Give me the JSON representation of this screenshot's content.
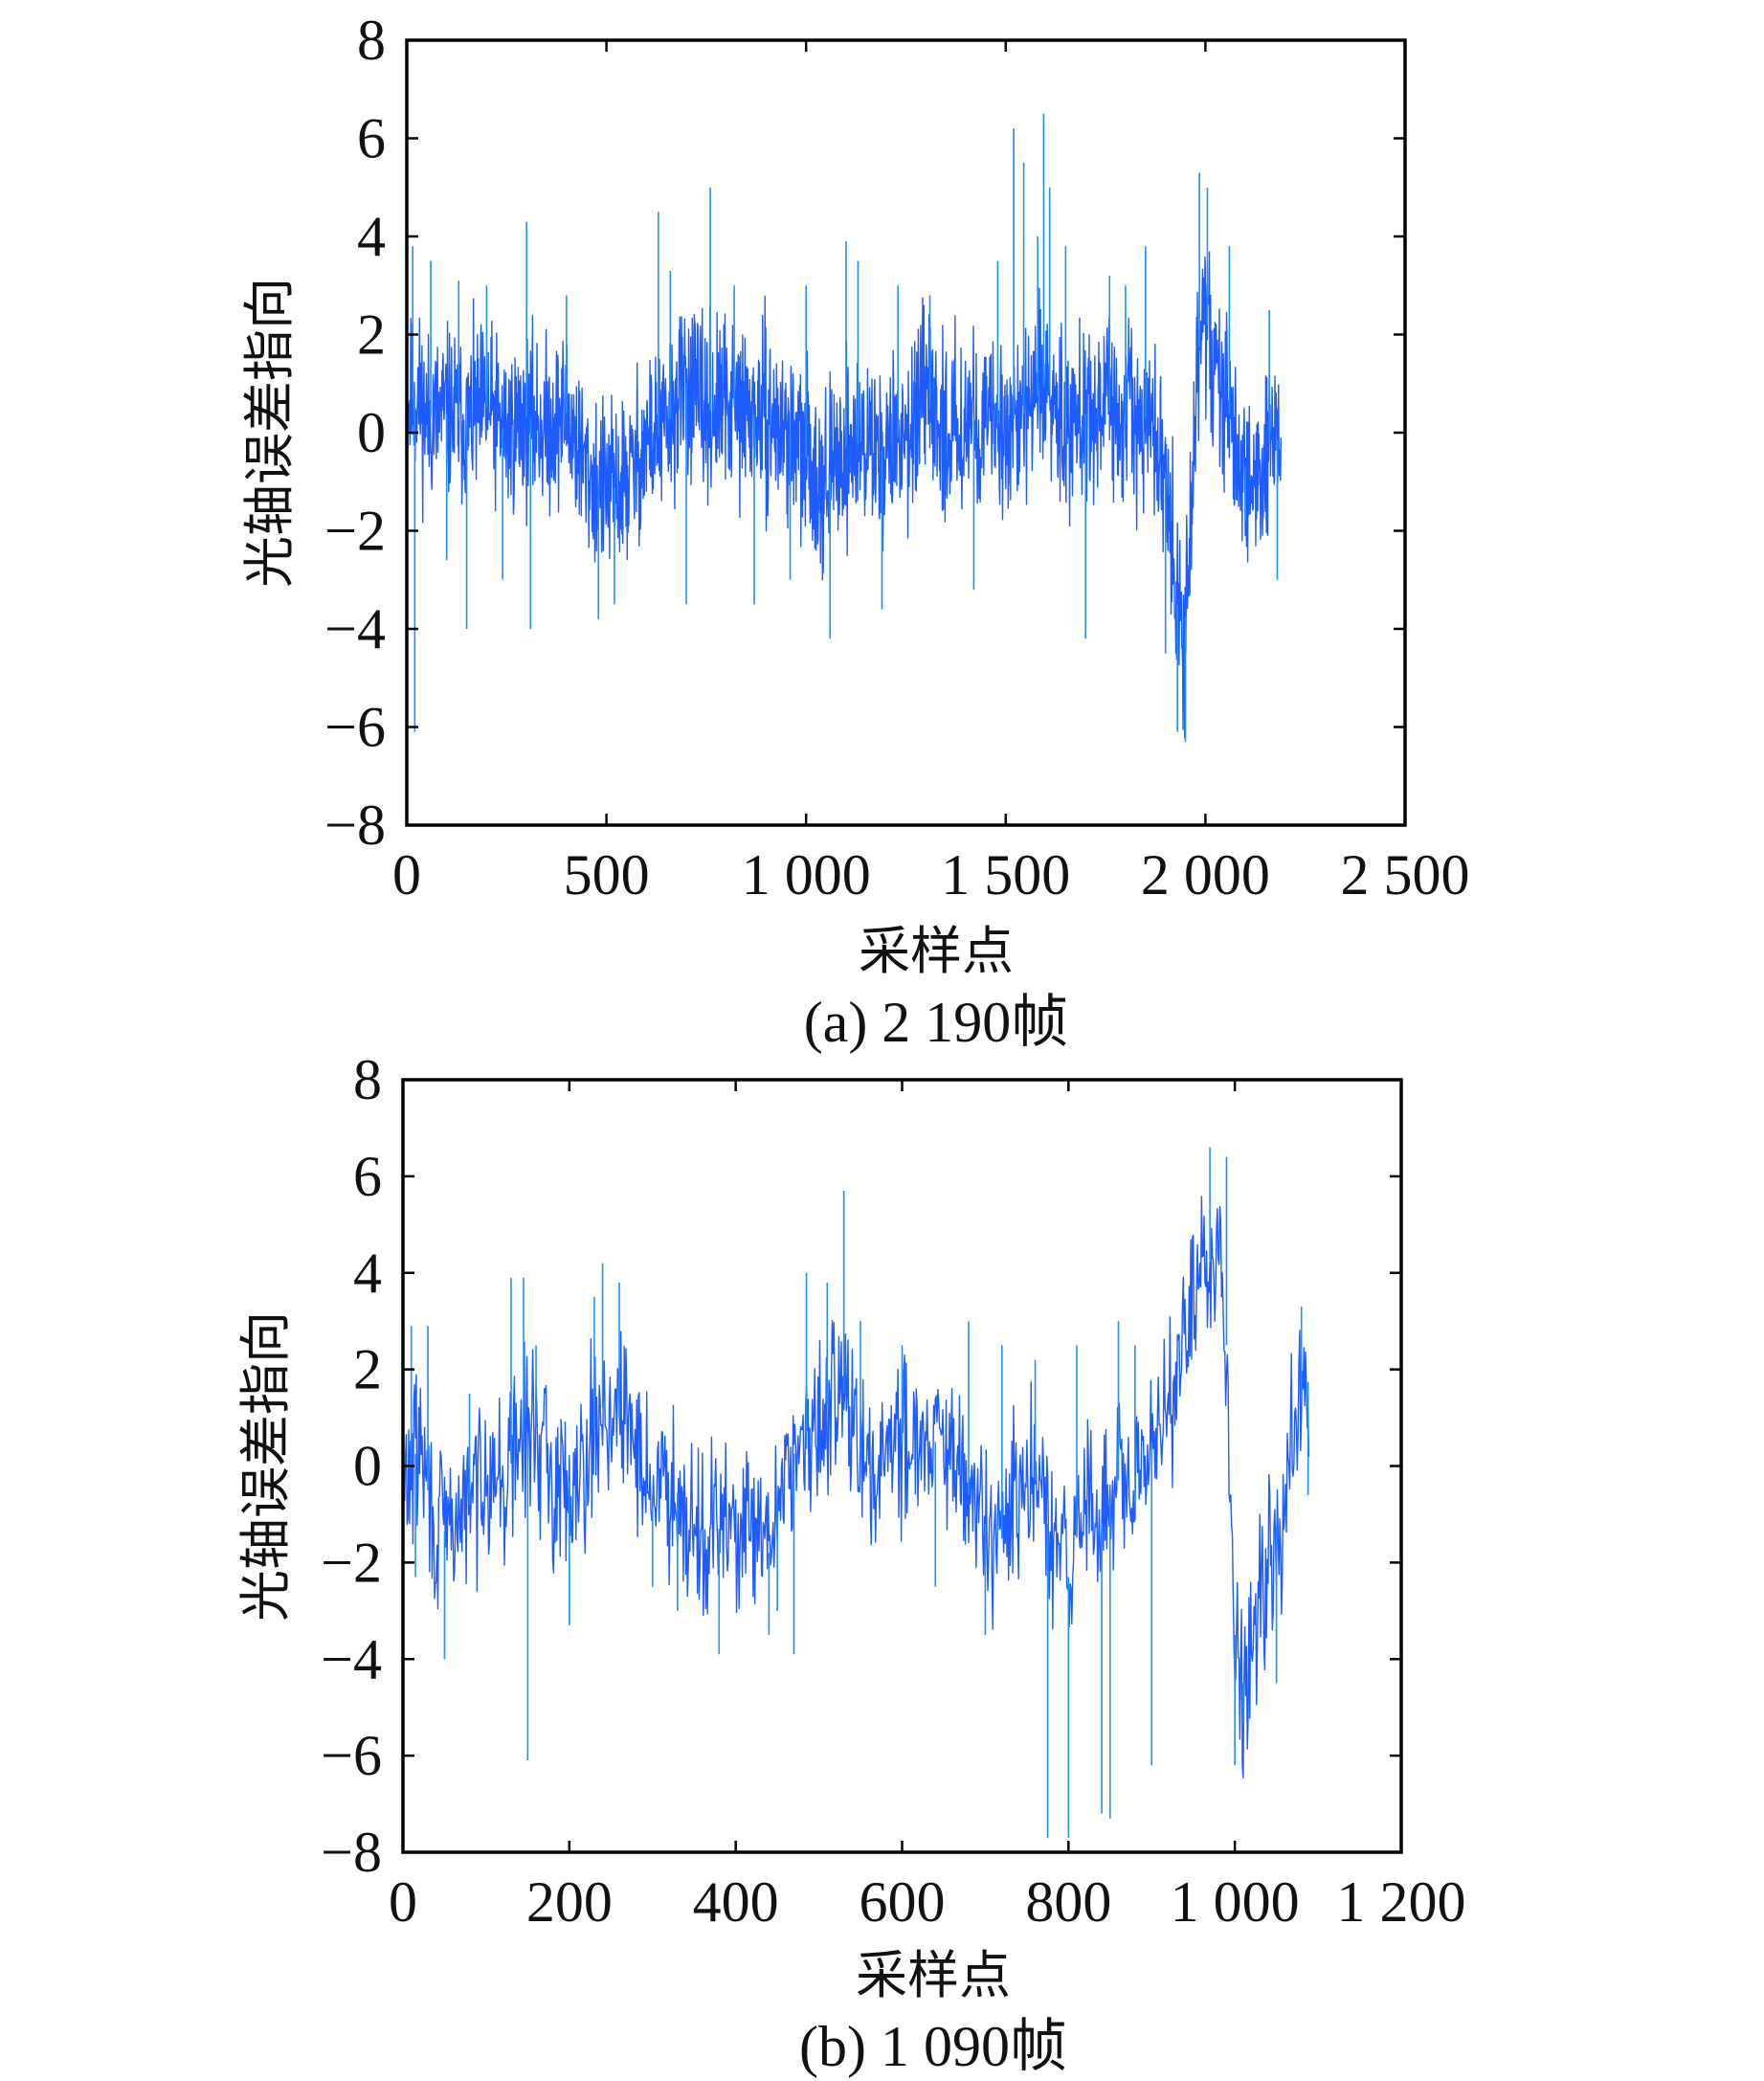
{
  "chart_data": [
    {
      "type": "line",
      "caption": "(a) 2 190帧",
      "xlabel": "采样点",
      "ylabel": "光轴误差指向",
      "xlim": [
        0,
        2500
      ],
      "ylim": [
        -8,
        8
      ],
      "x_ticks": [
        0,
        500,
        1000,
        1500,
        2000,
        2500
      ],
      "x_tick_labels": [
        "0",
        "500",
        "1 000",
        "1 500",
        "2 000",
        "2 500"
      ],
      "y_ticks": [
        8,
        6,
        4,
        2,
        0,
        -2,
        -4,
        -6,
        -8
      ],
      "y_tick_labels": [
        "8",
        "6",
        "4",
        "2",
        "0",
        "−2",
        "−4",
        "−6",
        "−8"
      ],
      "grid": false,
      "legend": "none",
      "colors": {
        "series": "#1f5cff",
        "spike": "#1e90ff"
      },
      "series": [
        {
          "n_points": 2190,
          "x": [
            0,
            25,
            50,
            100,
            150,
            200,
            250,
            300,
            350,
            400,
            450,
            500,
            550,
            600,
            650,
            700,
            750,
            800,
            850,
            900,
            950,
            1000,
            1050,
            1100,
            1150,
            1200,
            1250,
            1300,
            1350,
            1400,
            1450,
            1500,
            1550,
            1600,
            1650,
            1700,
            1750,
            1800,
            1850,
            1880,
            1900,
            1920,
            1940,
            1960,
            1980,
            2000,
            2020,
            2050,
            2080,
            2110,
            2140,
            2170,
            2190
          ],
          "values": [
            0.5,
            0.8,
            0.3,
            0.4,
            0.2,
            0.5,
            0.0,
            0.3,
            0.1,
            0.4,
            -0.8,
            -1.2,
            -1.0,
            -0.2,
            0.1,
            1.0,
            0.4,
            0.6,
            0.4,
            0.3,
            0.0,
            -0.5,
            -1.0,
            -0.3,
            -0.2,
            -0.4,
            0.1,
            0.6,
            0.0,
            0.3,
            0.1,
            0.2,
            0.4,
            1.0,
            0.3,
            0.4,
            0.5,
            0.2,
            0.3,
            -0.3,
            -0.8,
            -2.5,
            -4.5,
            -3.0,
            1.5,
            2.5,
            1.2,
            0.8,
            -0.5,
            -0.8,
            -1.0,
            0.2,
            -0.5
          ],
          "spikes": [
            {
              "x": 20,
              "y": -6.1
            },
            {
              "x": 15,
              "y": 3.8
            },
            {
              "x": 60,
              "y": 3.5
            },
            {
              "x": 100,
              "y": -2.6
            },
            {
              "x": 130,
              "y": 3.1
            },
            {
              "x": 150,
              "y": -4.0
            },
            {
              "x": 200,
              "y": 3.0
            },
            {
              "x": 240,
              "y": -3.0
            },
            {
              "x": 300,
              "y": 4.3
            },
            {
              "x": 310,
              "y": -4.0
            },
            {
              "x": 400,
              "y": 2.8
            },
            {
              "x": 480,
              "y": -3.8
            },
            {
              "x": 520,
              "y": -3.5
            },
            {
              "x": 630,
              "y": 4.5
            },
            {
              "x": 660,
              "y": 3.3
            },
            {
              "x": 700,
              "y": -3.5
            },
            {
              "x": 760,
              "y": 5.0
            },
            {
              "x": 820,
              "y": 3.0
            },
            {
              "x": 870,
              "y": -3.5
            },
            {
              "x": 960,
              "y": -3.0
            },
            {
              "x": 1000,
              "y": 3.0
            },
            {
              "x": 1060,
              "y": -4.2
            },
            {
              "x": 1100,
              "y": 3.9
            },
            {
              "x": 1130,
              "y": 3.5
            },
            {
              "x": 1190,
              "y": -3.6
            },
            {
              "x": 1230,
              "y": 3.0
            },
            {
              "x": 1310,
              "y": 2.8
            },
            {
              "x": 1420,
              "y": -3.2
            },
            {
              "x": 1480,
              "y": 3.5
            },
            {
              "x": 1520,
              "y": 6.2
            },
            {
              "x": 1545,
              "y": 5.5
            },
            {
              "x": 1580,
              "y": 4.0
            },
            {
              "x": 1595,
              "y": 6.5
            },
            {
              "x": 1610,
              "y": 5.0
            },
            {
              "x": 1650,
              "y": 3.8
            },
            {
              "x": 1700,
              "y": -4.2
            },
            {
              "x": 1760,
              "y": 3.2
            },
            {
              "x": 1800,
              "y": 3.0
            },
            {
              "x": 1850,
              "y": 3.8
            },
            {
              "x": 1900,
              "y": -4.5
            },
            {
              "x": 1930,
              "y": -6.1
            },
            {
              "x": 1950,
              "y": -6.3
            },
            {
              "x": 1985,
              "y": 5.3
            },
            {
              "x": 2005,
              "y": 5.0
            },
            {
              "x": 2060,
              "y": 3.8
            },
            {
              "x": 2100,
              "y": -1.8
            },
            {
              "x": 2160,
              "y": 2.5
            },
            {
              "x": 2180,
              "y": -3.0
            }
          ]
        }
      ]
    },
    {
      "type": "line",
      "caption": "(b) 1 090帧",
      "xlabel": "采样点",
      "ylabel": "光轴误差指向",
      "xlim": [
        0,
        1200
      ],
      "ylim": [
        -8,
        8
      ],
      "x_ticks": [
        0,
        200,
        400,
        600,
        800,
        1000,
        1200
      ],
      "x_tick_labels": [
        "0",
        "200",
        "400",
        "600",
        "800",
        "1 000",
        "1 200"
      ],
      "y_ticks": [
        8,
        6,
        4,
        2,
        0,
        -2,
        -4,
        -6,
        -8
      ],
      "y_tick_labels": [
        "8",
        "6",
        "4",
        "2",
        "0",
        "−2",
        "−4",
        "−6",
        "−8"
      ],
      "grid": false,
      "legend": "none",
      "colors": {
        "series": "#1f5cff",
        "spike": "#1e90ff"
      },
      "series": [
        {
          "n_points": 1090,
          "x": [
            0,
            20,
            40,
            60,
            80,
            100,
            120,
            140,
            160,
            180,
            200,
            220,
            240,
            260,
            280,
            300,
            320,
            340,
            360,
            380,
            400,
            420,
            440,
            460,
            480,
            500,
            520,
            540,
            560,
            580,
            600,
            620,
            640,
            660,
            680,
            700,
            720,
            740,
            760,
            780,
            800,
            820,
            840,
            860,
            880,
            900,
            920,
            940,
            960,
            980,
            990,
            1000,
            1010,
            1020,
            1040,
            1060,
            1080,
            1090
          ],
          "values": [
            -0.5,
            0.5,
            -1.5,
            -1.2,
            -0.8,
            0.2,
            -0.5,
            0.6,
            0.8,
            -0.5,
            -0.3,
            0.3,
            1.2,
            1.0,
            0.6,
            -0.6,
            -0.3,
            -0.8,
            -1.5,
            -1.3,
            -1.2,
            -1.5,
            -1.8,
            0.2,
            0.3,
            0.5,
            2.0,
            1.0,
            -0.5,
            0.6,
            0.4,
            0.8,
            0.5,
            0.0,
            -0.6,
            -1.2,
            -1.5,
            -0.6,
            -0.3,
            -1.5,
            -2.3,
            -0.5,
            -1.2,
            -0.3,
            -0.8,
            0.5,
            1.5,
            2.5,
            4.0,
            4.5,
            2.5,
            -3.5,
            -4.5,
            -3.5,
            -2.0,
            -0.5,
            1.5,
            1.8
          ],
          "spikes": [
            {
              "x": 10,
              "y": 2.9
            },
            {
              "x": 15,
              "y": -2.3
            },
            {
              "x": 30,
              "y": 2.9
            },
            {
              "x": 50,
              "y": -4.0
            },
            {
              "x": 80,
              "y": 1.5
            },
            {
              "x": 130,
              "y": 3.9
            },
            {
              "x": 145,
              "y": 3.9
            },
            {
              "x": 150,
              "y": -6.1
            },
            {
              "x": 160,
              "y": 2.5
            },
            {
              "x": 200,
              "y": -3.3
            },
            {
              "x": 230,
              "y": 3.5
            },
            {
              "x": 240,
              "y": 4.2
            },
            {
              "x": 260,
              "y": 3.8
            },
            {
              "x": 300,
              "y": -2.5
            },
            {
              "x": 330,
              "y": -3.0
            },
            {
              "x": 380,
              "y": -3.9
            },
            {
              "x": 440,
              "y": -3.5
            },
            {
              "x": 450,
              "y": -3.0
            },
            {
              "x": 470,
              "y": -3.9
            },
            {
              "x": 485,
              "y": 4.0
            },
            {
              "x": 510,
              "y": 3.8
            },
            {
              "x": 530,
              "y": 5.7
            },
            {
              "x": 550,
              "y": 3.0
            },
            {
              "x": 600,
              "y": 2.5
            },
            {
              "x": 640,
              "y": -2.5
            },
            {
              "x": 680,
              "y": 3.0
            },
            {
              "x": 700,
              "y": -3.5
            },
            {
              "x": 720,
              "y": 2.5
            },
            {
              "x": 760,
              "y": 2.2
            },
            {
              "x": 775,
              "y": -7.7
            },
            {
              "x": 800,
              "y": -7.7
            },
            {
              "x": 810,
              "y": 2.5
            },
            {
              "x": 840,
              "y": -7.2
            },
            {
              "x": 850,
              "y": -7.3
            },
            {
              "x": 860,
              "y": 3.0
            },
            {
              "x": 880,
              "y": 2.5
            },
            {
              "x": 900,
              "y": -6.2
            },
            {
              "x": 970,
              "y": 6.6
            },
            {
              "x": 990,
              "y": 6.4
            },
            {
              "x": 1000,
              "y": -6.2
            },
            {
              "x": 1010,
              "y": -5.3
            },
            {
              "x": 1050,
              "y": -4.5
            },
            {
              "x": 1080,
              "y": 3.3
            },
            {
              "x": 1088,
              "y": -0.6
            }
          ]
        }
      ]
    }
  ]
}
